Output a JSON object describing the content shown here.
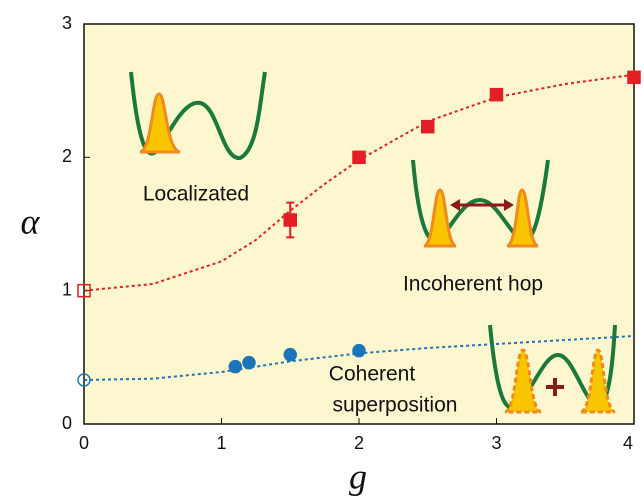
{
  "chart_data": {
    "type": "scatter",
    "xlabel": "g",
    "ylabel": "α",
    "xlim": [
      0,
      4
    ],
    "ylim": [
      0,
      3
    ],
    "xticks": [
      0,
      1,
      2,
      3,
      4
    ],
    "yticks": [
      0,
      1,
      2,
      3
    ],
    "background": "#fdf7cf",
    "series": [
      {
        "color": "#e31e24",
        "marker": "square",
        "x": [
          0,
          1.5,
          2,
          2.5,
          3,
          4
        ],
        "values": [
          1.0,
          1.53,
          2.0,
          2.23,
          2.47,
          2.6
        ],
        "errors": [
          null,
          0.13,
          null,
          null,
          null,
          null
        ],
        "filled": [
          false,
          true,
          true,
          true,
          true,
          true
        ]
      },
      {
        "color": "#1b75bb",
        "marker": "circle",
        "x": [
          0,
          1.1,
          1.2,
          1.5,
          2
        ],
        "values": [
          0.33,
          0.43,
          0.46,
          0.52,
          0.55
        ],
        "filled": [
          false,
          true,
          true,
          true,
          true
        ]
      },
      {
        "color": "#e31e24",
        "style": "dashed",
        "x": [
          0,
          0.5,
          1,
          1.25,
          1.5,
          1.75,
          2,
          2.5,
          3,
          3.5,
          4
        ],
        "values": [
          1.0,
          1.05,
          1.22,
          1.38,
          1.6,
          1.8,
          1.98,
          2.27,
          2.45,
          2.55,
          2.62
        ]
      },
      {
        "color": "#1b75bb",
        "style": "dashed",
        "x": [
          0,
          0.5,
          1,
          1.5,
          2,
          2.5,
          3,
          3.5,
          4
        ],
        "values": [
          0.33,
          0.34,
          0.39,
          0.47,
          0.53,
          0.57,
          0.6,
          0.63,
          0.66
        ]
      }
    ],
    "annotations": [
      "Localizated",
      "Incoherent hop",
      "Coherent",
      "superposition"
    ]
  }
}
